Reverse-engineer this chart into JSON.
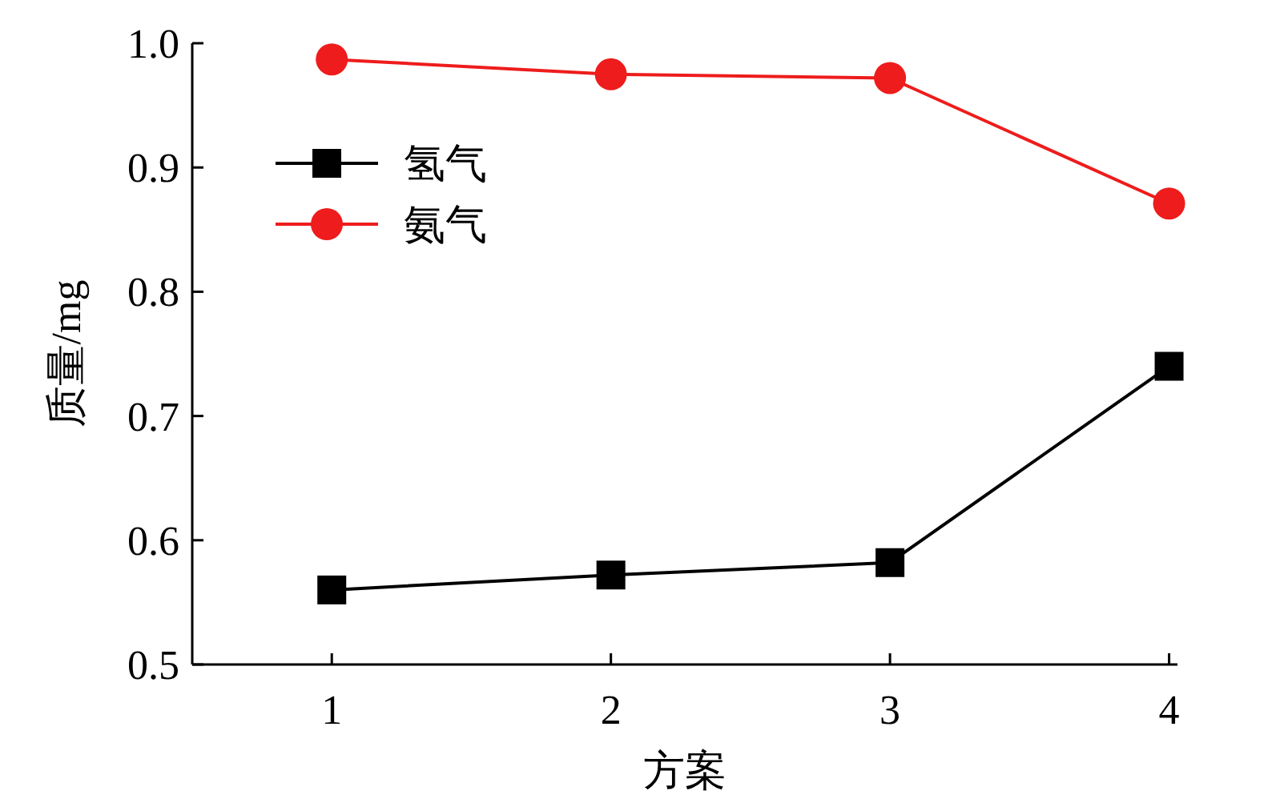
{
  "chart_data": {
    "type": "line",
    "xlabel": "方案",
    "ylabel": "质量/mg",
    "x": [
      1,
      2,
      3,
      4
    ],
    "series": [
      {
        "name": "氢气",
        "color": "#000000",
        "marker": "square",
        "values": [
          0.56,
          0.572,
          0.582,
          0.74
        ]
      },
      {
        "name": "氨气",
        "color": "#ee1c1c",
        "marker": "circle",
        "values": [
          0.987,
          0.975,
          0.972,
          0.871
        ]
      }
    ],
    "xlim": [
      0.5,
      4.03
    ],
    "xticks": [
      1,
      2,
      3,
      4
    ],
    "ylim": [
      0.5,
      1.0
    ],
    "yticks": [
      {
        "value": 0.5,
        "label": "0.5"
      },
      {
        "value": 0.6,
        "label": "0.6"
      },
      {
        "value": 0.7,
        "label": "0.7"
      },
      {
        "value": 0.8,
        "label": "0.8"
      },
      {
        "value": 0.9,
        "label": "0.9"
      },
      {
        "value": 1.0,
        "label": "1.0"
      }
    ],
    "grid": false,
    "legend": "top left",
    "line_style": "solid"
  }
}
